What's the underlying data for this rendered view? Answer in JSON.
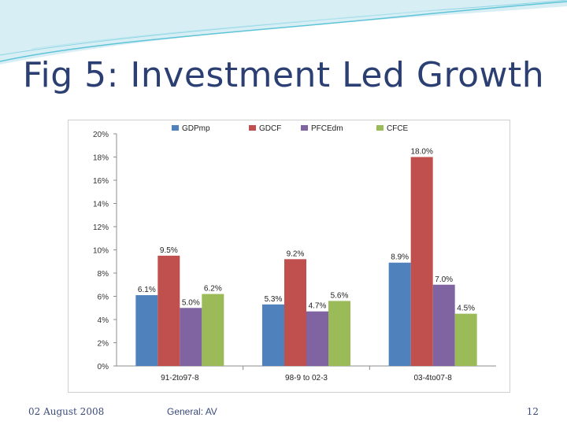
{
  "slide": {
    "title": "Fig 5: Investment Led Growth",
    "footer_date": "02 August 2008",
    "footer_center": "General: AV",
    "page_number": "12"
  },
  "colors": {
    "title": "#2b3f73",
    "decor_wave": "#5fc4d8",
    "series": [
      "#4f81bd",
      "#c0504d",
      "#8064a2",
      "#9bbb59"
    ]
  },
  "chart_data": {
    "type": "bar",
    "categories": [
      "91-2to97-8",
      "98-9 to 02-3",
      "03-4to07-8"
    ],
    "series": [
      {
        "name": "GDPmp",
        "values": [
          6.1,
          5.3,
          8.9
        ],
        "labels": [
          "6.1%",
          "5.3%",
          "8.9%"
        ]
      },
      {
        "name": "GDCF",
        "values": [
          9.5,
          9.2,
          18.0
        ],
        "labels": [
          "9.5%",
          "9.2%",
          "18.0%"
        ]
      },
      {
        "name": "PFCEdm",
        "values": [
          5.0,
          4.7,
          7.0
        ],
        "labels": [
          "5.0%",
          "4.7%",
          "7.0%"
        ]
      },
      {
        "name": "CFCE",
        "values": [
          6.2,
          5.6,
          4.5
        ],
        "labels": [
          "6.2%",
          "5.6%",
          "4.5%"
        ]
      }
    ],
    "ylim": [
      0,
      20
    ],
    "yticks": [
      "0%",
      "2%",
      "4%",
      "6%",
      "8%",
      "10%",
      "12%",
      "14%",
      "16%",
      "18%",
      "20%"
    ],
    "xlabel": "",
    "ylabel": "",
    "legend": "top",
    "grid": false
  }
}
